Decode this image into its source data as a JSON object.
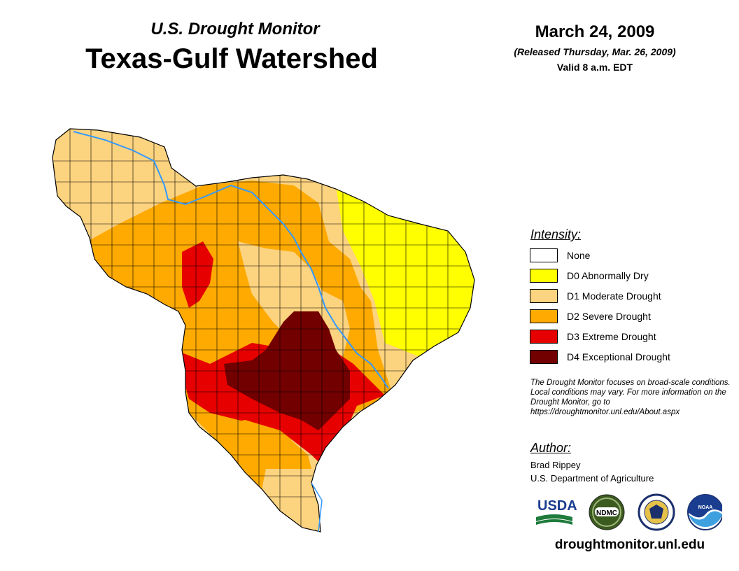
{
  "header": {
    "subtitle": "U.S. Drought Monitor",
    "title": "Texas-Gulf Watershed",
    "date": "March 24, 2009",
    "released": "(Released Thursday, Mar. 26, 2009)",
    "valid": "Valid 8 a.m. EDT"
  },
  "legend": {
    "title": "Intensity:",
    "items": [
      {
        "label": "None",
        "color": "#ffffff"
      },
      {
        "label": "D0 Abnormally Dry",
        "color": "#ffff00"
      },
      {
        "label": "D1 Moderate Drought",
        "color": "#fcd37f"
      },
      {
        "label": "D2 Severe Drought",
        "color": "#ffaa00"
      },
      {
        "label": "D3 Extreme Drought",
        "color": "#e60000"
      },
      {
        "label": "D4 Exceptional Drought",
        "color": "#730000"
      }
    ]
  },
  "note": "The Drought Monitor focuses on broad-scale conditions. Local conditions may vary. For more information on the Drought Monitor, go to https://droughtmonitor.unl.edu/About.aspx",
  "author": {
    "title": "Author:",
    "name": "Brad Rippey",
    "organization": "U.S. Department of Agriculture"
  },
  "logos": {
    "usda": "USDA",
    "ndmc": "NDMC",
    "noaa": "NOAA"
  },
  "footer": {
    "url": "droughtmonitor.unl.edu"
  },
  "map_colors": {
    "river": "#3399ff",
    "county_line": "#000000"
  }
}
